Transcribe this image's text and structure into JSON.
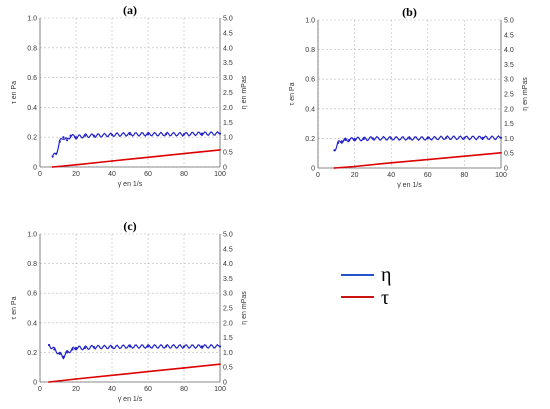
{
  "chart_data": [
    {
      "type": "line",
      "panel_label": "(a)",
      "xlabel": "γ̇ en 1/s",
      "ylabel_left": "τ en Pa",
      "ylabel_right": "η en mPas",
      "xlim": [
        0,
        100
      ],
      "ylim_left": [
        0,
        1.0
      ],
      "ylim_right": [
        0,
        5.0
      ],
      "xticks": [
        "0",
        "20",
        "40",
        "60",
        "80",
        "100"
      ],
      "yticks_left": [
        "0",
        "0.2",
        "0.4",
        "0.6",
        "0.8",
        "1.0"
      ],
      "yticks_right": [
        "0",
        "0.5",
        "1.0",
        "1.5",
        "2.0",
        "2.5",
        "3.0",
        "3.5",
        "4.0",
        "4.5",
        "5.0"
      ],
      "grid": true,
      "series": [
        {
          "axis": "right",
          "color": "#2222cc",
          "style": "oscillating",
          "x": [
            7,
            9,
            11,
            13,
            15,
            17,
            20,
            25,
            30,
            40,
            50,
            60,
            70,
            80,
            90,
            100
          ],
          "y": [
            0.35,
            0.45,
            0.85,
            1.0,
            0.9,
            1.05,
            1.0,
            1.05,
            1.05,
            1.08,
            1.1,
            1.1,
            1.1,
            1.1,
            1.12,
            1.12
          ]
        },
        {
          "axis": "left",
          "color": "#dd0000",
          "style": "straight",
          "x": [
            7,
            20,
            40,
            60,
            80,
            100
          ],
          "y": [
            0.0,
            0.015,
            0.04,
            0.065,
            0.09,
            0.115
          ]
        }
      ]
    },
    {
      "type": "line",
      "panel_label": "(b)",
      "xlabel": "γ̇ en 1/s",
      "ylabel_left": "τ en Pa",
      "ylabel_right": "η en mPas",
      "xlim": [
        0,
        100
      ],
      "ylim_left": [
        0,
        1.0
      ],
      "ylim_right": [
        0,
        5.0
      ],
      "xticks": [
        "0",
        "20",
        "40",
        "60",
        "80",
        "100"
      ],
      "yticks_left": [
        "0",
        "0.2",
        "0.4",
        "0.6",
        "0.8",
        "1.0"
      ],
      "yticks_right": [
        "0",
        "0.5",
        "1.0",
        "1.5",
        "2.0",
        "2.5",
        "3.0",
        "3.5",
        "4.0",
        "4.5",
        "5.0"
      ],
      "grid": true,
      "series": [
        {
          "axis": "right",
          "color": "#2222cc",
          "style": "oscillating",
          "x": [
            9,
            11,
            13,
            15,
            17,
            20,
            25,
            30,
            40,
            50,
            60,
            70,
            80,
            90,
            100
          ],
          "y": [
            0.6,
            0.85,
            0.9,
            0.95,
            0.95,
            0.98,
            0.98,
            1.0,
            1.0,
            1.0,
            1.0,
            1.02,
            1.02,
            1.02,
            1.02
          ]
        },
        {
          "axis": "left",
          "color": "#dd0000",
          "style": "straight",
          "x": [
            9,
            20,
            40,
            60,
            80,
            100
          ],
          "y": [
            0.0,
            0.01,
            0.035,
            0.057,
            0.08,
            0.103
          ]
        }
      ]
    },
    {
      "type": "line",
      "panel_label": "(c)",
      "xlabel": "γ̇ en 1/s",
      "ylabel_left": "τ en Pa",
      "ylabel_right": "η en mPas",
      "xlim": [
        0,
        100
      ],
      "ylim_left": [
        0,
        1.0
      ],
      "ylim_right": [
        0,
        5.0
      ],
      "xticks": [
        "0",
        "20",
        "40",
        "60",
        "80",
        "100"
      ],
      "yticks_left": [
        "0",
        "0.2",
        "0.4",
        "0.6",
        "0.8",
        "1.0"
      ],
      "yticks_right": [
        "0",
        "0.5",
        "1.0",
        "1.5",
        "2.0",
        "2.5",
        "3.0",
        "3.5",
        "4.0",
        "4.5",
        "5.0"
      ],
      "grid": true,
      "series": [
        {
          "axis": "right",
          "color": "#2222cc",
          "style": "oscillating",
          "x": [
            5,
            8,
            11,
            13,
            15,
            18,
            20,
            25,
            30,
            40,
            50,
            60,
            70,
            80,
            90,
            100
          ],
          "y": [
            1.25,
            1.1,
            0.95,
            0.85,
            1.0,
            1.1,
            1.15,
            1.15,
            1.18,
            1.18,
            1.2,
            1.2,
            1.2,
            1.2,
            1.2,
            1.2
          ]
        },
        {
          "axis": "left",
          "color": "#dd0000",
          "style": "straight",
          "x": [
            5,
            20,
            40,
            60,
            80,
            100
          ],
          "y": [
            0.0,
            0.02,
            0.045,
            0.07,
            0.095,
            0.12
          ]
        }
      ]
    }
  ],
  "legend": [
    {
      "label": "η",
      "color": "#2255cc"
    },
    {
      "label": "τ",
      "color": "#cc1111"
    }
  ]
}
